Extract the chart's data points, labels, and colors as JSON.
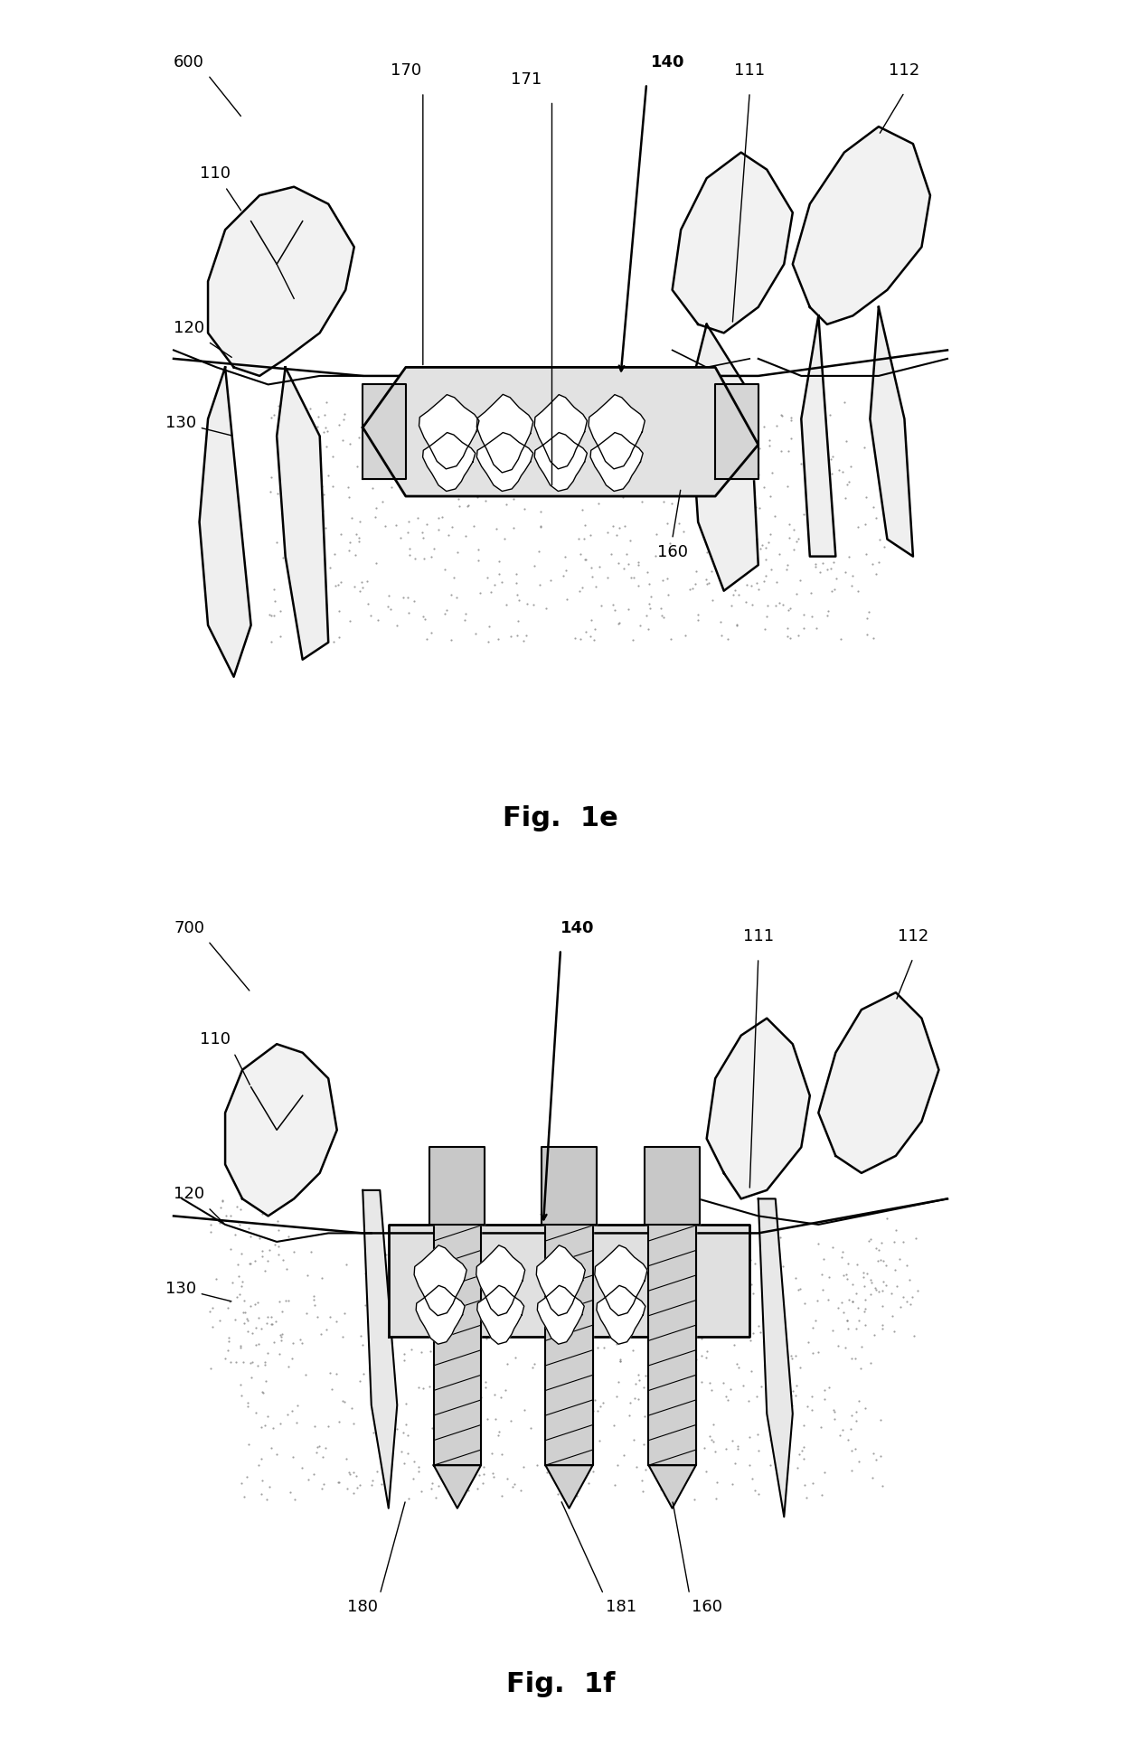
{
  "fig_title_1": "Fig.  1e",
  "fig_title_2": "Fig.  1f",
  "bg_color": "#ffffff",
  "line_color": "#000000"
}
